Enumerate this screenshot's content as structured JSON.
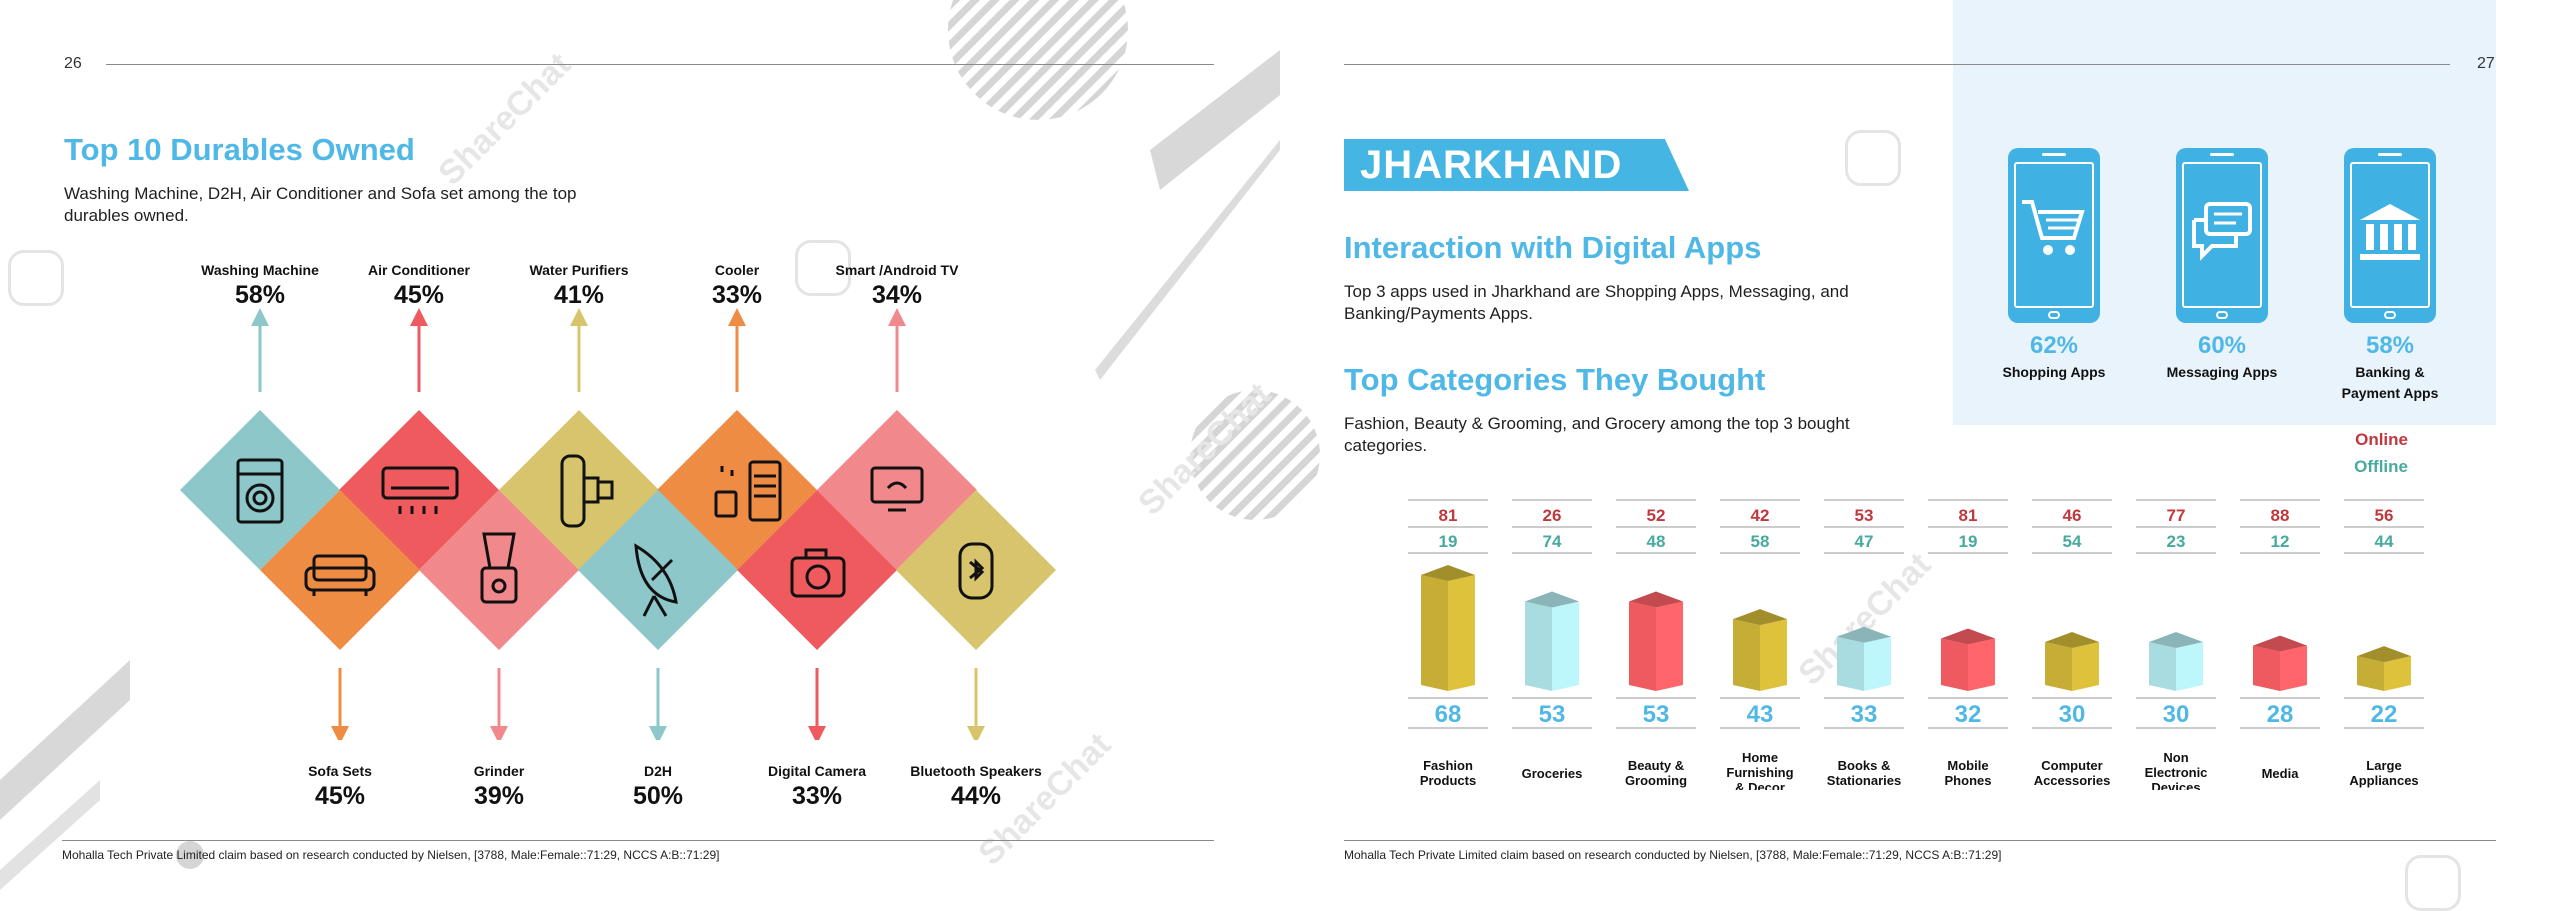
{
  "left_page": {
    "page_number": "26",
    "title": "Top 10 Durables Owned",
    "description": "Washing Machine, D2H, Air Conditioner and Sofa set among the top durables owned.",
    "top_items": [
      {
        "label": "Washing Machine",
        "pct": "58%",
        "icon": "washing-machine-icon",
        "color": "#8ec7c9"
      },
      {
        "label": "Air Conditioner",
        "pct": "45%",
        "icon": "air-conditioner-icon",
        "color": "#ee5a5d"
      },
      {
        "label": "Water Purifiers",
        "pct": "41%",
        "icon": "water-purifier-icon",
        "color": "#d7c46c"
      },
      {
        "label": "Cooler",
        "pct": "33%",
        "icon": "cooler-icon",
        "color": "#ee8c44"
      },
      {
        "label": "Smart /Android TV",
        "pct": "34%",
        "icon": "smart-tv-icon",
        "color": "#f1888c"
      }
    ],
    "bottom_items": [
      {
        "label": "Sofa Sets",
        "pct": "45%",
        "icon": "sofa-icon",
        "color": "#ee8c44"
      },
      {
        "label": "Grinder",
        "pct": "39%",
        "icon": "grinder-icon",
        "color": "#f1888c"
      },
      {
        "label": "D2H",
        "pct": "50%",
        "icon": "satellite-dish-icon",
        "color": "#8ec7c9"
      },
      {
        "label": "Digital Camera",
        "pct": "33%",
        "icon": "camera-icon",
        "color": "#ee5a5d"
      },
      {
        "label": "Bluetooth Speakers",
        "pct": "44%",
        "icon": "bluetooth-speaker-icon",
        "color": "#d7c46c"
      }
    ],
    "footer": "Mohalla Tech Private Limited claim based on research conducted by Nielsen, [3788, Male:Female::71:29, NCCS A:B::71:29]"
  },
  "right_page": {
    "page_number": "27",
    "state_banner": "JHARKHAND",
    "section1_title": "Interaction with Digital Apps",
    "section1_text": "Top 3 apps used in Jharkhand are Shopping Apps, Messaging, and Banking/Payments Apps.",
    "apps": [
      {
        "pct": "62%",
        "label": "Shopping Apps",
        "icon": "shopping-cart-icon"
      },
      {
        "pct": "60%",
        "label": "Messaging Apps",
        "icon": "chat-bubbles-icon"
      },
      {
        "pct": "58%",
        "label": "Banking & Payment Apps",
        "icon": "bank-icon"
      }
    ],
    "section2_title": "Top Categories They Bought",
    "section2_text": "Fashion, Beauty & Grooming, and Grocery among the top 3 bought categories.",
    "legend": {
      "online": "Online",
      "offline": "Offline"
    },
    "footer": "Mohalla Tech Private Limited claim based on research conducted by Nielsen, [3788, Male:Female::71:29, NCCS A:B::71:29]"
  },
  "colors": {
    "accent_blue": "#4fb8e6",
    "online_red": "#c0393e",
    "offline_teal": "#48a99e"
  },
  "watermark": "ShareChat",
  "chart_data": {
    "type": "bar",
    "categories": [
      "Fashion Products",
      "Groceries",
      "Beauty & Grooming",
      "Home Furnishing & Decor",
      "Books & Stationaries",
      "Mobile Phones",
      "Computer Accessories",
      "Non Electronic Devices",
      "Media",
      "Large Appliances"
    ],
    "series": [
      {
        "name": "",
        "values": [
          68,
          53,
          53,
          43,
          33,
          32,
          30,
          30,
          28,
          22
        ]
      },
      {
        "name": "Online",
        "values": [
          81,
          26,
          52,
          42,
          53,
          81,
          46,
          77,
          88,
          56
        ]
      },
      {
        "name": "Offline",
        "values": [
          19,
          74,
          48,
          58,
          47,
          19,
          54,
          23,
          12,
          44
        ]
      }
    ],
    "bar_colors": [
      "#c6ad35",
      "#a9dce0",
      "#ee5a5f",
      "#c6ad35",
      "#a9dce0",
      "#ee5a5f",
      "#c6ad35",
      "#a9dce0",
      "#ee5a5f",
      "#c6ad35"
    ]
  }
}
